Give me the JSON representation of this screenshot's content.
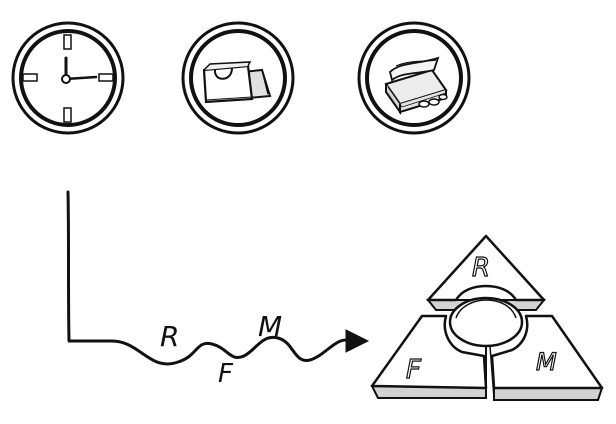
{
  "icons": [
    {
      "name": "clock-icon",
      "label": ""
    },
    {
      "name": "shopping-bags-icon",
      "label": ""
    },
    {
      "name": "money-stack-icon",
      "label": ""
    }
  ],
  "axis_path": {
    "letters": [
      "R",
      "F",
      "M"
    ]
  },
  "triangle": {
    "segments": [
      "R",
      "F",
      "M"
    ]
  },
  "colors": {
    "ink": "#111111",
    "fill": "#ffffff",
    "shade": "#d8d8d8"
  }
}
